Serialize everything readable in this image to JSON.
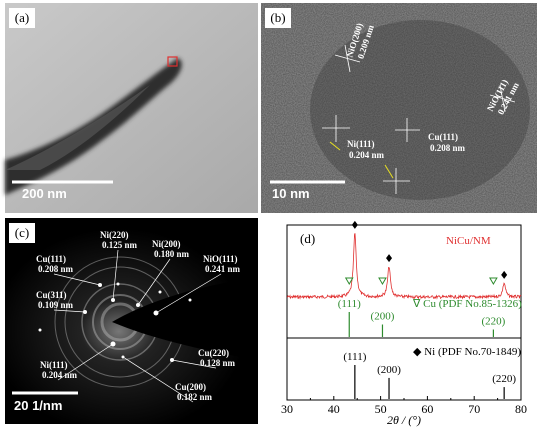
{
  "panels": [
    {
      "label": "(a)",
      "scale_bar": "200 nm"
    },
    {
      "label": "(b)",
      "scale_bar": "10 nm",
      "annotations": [
        {
          "phase": "NiO(200)",
          "spacing": "0.209 nm"
        },
        {
          "phase": "NiO(111)",
          "spacing": "0.241 nm"
        },
        {
          "phase": "Ni(111)",
          "spacing": "0.204 nm"
        },
        {
          "phase": "Cu(111)",
          "spacing": "0.208 nm"
        }
      ]
    },
    {
      "label": "(c)",
      "scale_bar": "20 1/nm",
      "annotations": [
        {
          "phase": "Ni(220)",
          "spacing": "0.125 nm"
        },
        {
          "phase": "Cu(111)",
          "spacing": "0.208 nm"
        },
        {
          "phase": "Ni(200)",
          "spacing": "0.180 nm"
        },
        {
          "phase": "NiO(111)",
          "spacing": "0.241 nm"
        },
        {
          "phase": "Cu(311)",
          "spacing": "0.109 nm"
        },
        {
          "phase": "Ni(111)",
          "spacing": "0.204 nm"
        },
        {
          "phase": "Cu(220)",
          "spacing": "0.128 nm"
        },
        {
          "phase": "Cu(200)",
          "spacing": "0.182 nm"
        }
      ]
    }
  ],
  "chart_data": {
    "type": "line",
    "label": "(d)",
    "sample_name": "NiCu/NM",
    "xlabel": "2θ / (°)",
    "xlim": [
      30,
      80
    ],
    "xticks": [
      30,
      40,
      50,
      60,
      70,
      80
    ],
    "pattern": {
      "color": "#e03030",
      "peaks_x": [
        44.5,
        51.8,
        76.4
      ],
      "peaks_intensity": [
        100,
        48,
        22
      ]
    },
    "references": [
      {
        "name": "∇ Cu (PDF No.85-1326)",
        "color": "#2e8b2e",
        "x": [
          43.3,
          50.4,
          74.1
        ],
        "intensity": [
          100,
          50,
          30
        ],
        "labels": [
          "(111)",
          "(200)",
          "(220)"
        ]
      },
      {
        "name": "◆ Ni (PDF No.70-1849)",
        "color": "#000000",
        "x": [
          44.5,
          51.8,
          76.4
        ],
        "intensity": [
          100,
          62,
          35
        ],
        "labels": [
          "(111)",
          "(200)",
          "(220)"
        ]
      }
    ]
  }
}
